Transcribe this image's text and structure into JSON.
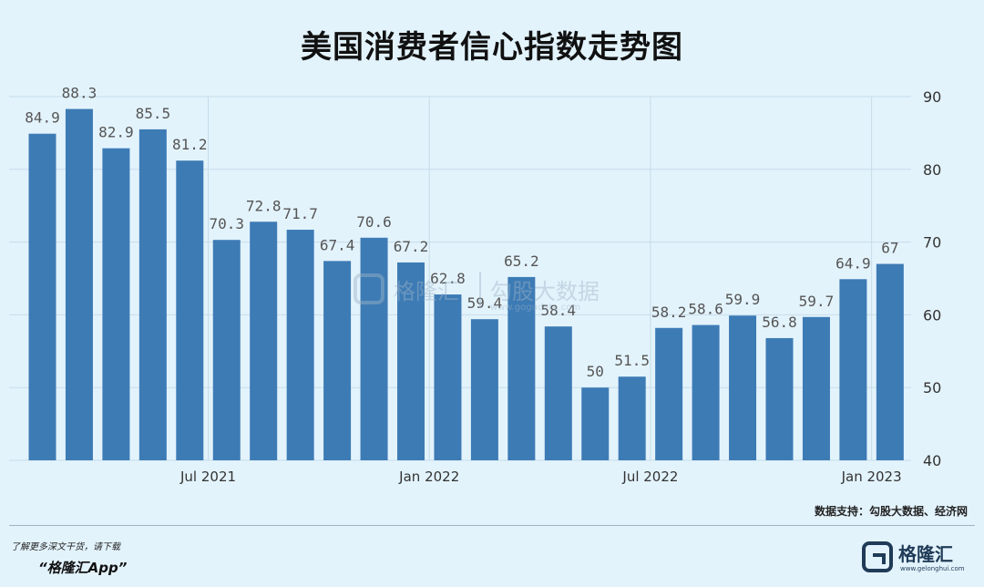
{
  "title": "美国消费者信心指数走势图",
  "source_note": "数据支持：勾股大数据、经济网",
  "promo": {
    "line1": "了解更多深文干货，请下载",
    "line2": "“格隆汇App”"
  },
  "brand": {
    "name": "格隆汇",
    "url": "www.gelonghui.com"
  },
  "watermark": {
    "name1": "格隆汇",
    "name2": "勾股大数据",
    "url": "www.gogudata.com"
  },
  "colors": {
    "bar": "#3d7bb5",
    "background": "#e3f3fc",
    "grid": "#c6dce9"
  },
  "chart_data": {
    "type": "bar",
    "title": "美国消费者信心指数走势图",
    "values": [
      84.9,
      88.3,
      82.9,
      85.5,
      81.2,
      70.3,
      72.8,
      71.7,
      67.4,
      70.6,
      67.2,
      62.8,
      59.4,
      65.2,
      58.4,
      50,
      51.5,
      58.2,
      58.6,
      59.9,
      56.8,
      59.7,
      64.9,
      67
    ],
    "value_labels": [
      "84.9",
      "88.3",
      "82.9",
      "85.5",
      "81.2",
      "70.3",
      "72.8",
      "71.7",
      "67.4",
      "70.6",
      "67.2",
      "62.8",
      "59.4",
      "65.2",
      "58.4",
      "50",
      "51.5",
      "58.2",
      "58.6",
      "59.9",
      "56.8",
      "59.7",
      "64.9",
      "67"
    ],
    "x_ticks": [
      {
        "after_bar_index": 4,
        "label": "Jul 2021"
      },
      {
        "after_bar_index": 10,
        "label": "Jan 2022"
      },
      {
        "after_bar_index": 16,
        "label": "Jul 2022"
      },
      {
        "after_bar_index": 22,
        "label": "Jan 2023"
      }
    ],
    "y_axis": {
      "position": "right",
      "ylim": [
        40,
        90
      ],
      "ticks": [
        40,
        50,
        60,
        70,
        80,
        90
      ]
    },
    "grid": true,
    "xlabel": "",
    "ylabel": ""
  }
}
